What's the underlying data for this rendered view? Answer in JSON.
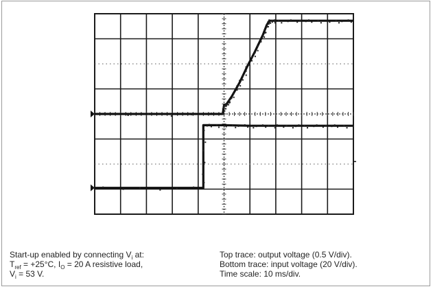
{
  "chart_data": {
    "type": "line",
    "title": "",
    "xlabel": "",
    "ylabel": "",
    "grid": true,
    "divisions": {
      "x": 10,
      "y": 8
    },
    "xlim": [
      -5,
      5
    ],
    "ylim": [
      -4,
      4
    ],
    "units": {
      "x": "div",
      "y": "div"
    },
    "channel_marker_level": 0,
    "series": [
      {
        "name": "",
        "role": "top trace",
        "x": [
          -5.0,
          -0.05,
          0.0,
          0.1,
          0.3,
          0.6,
          0.9,
          1.2,
          1.5,
          1.65,
          1.75,
          2.0,
          3.0,
          4.0,
          5.0
        ],
        "y": [
          0.0,
          0.0,
          0.35,
          0.4,
          0.7,
          1.25,
          1.9,
          2.5,
          3.15,
          3.55,
          3.72,
          3.72,
          3.72,
          3.72,
          3.72
        ]
      },
      {
        "name": "",
        "role": "bottom trace",
        "x": [
          -5.0,
          -0.8,
          -0.8,
          0.0,
          1.0,
          2.0,
          3.0,
          4.0,
          5.0
        ],
        "y": [
          -2.95,
          -2.95,
          -0.45,
          -0.45,
          -0.47,
          -0.47,
          -0.47,
          -0.47,
          -0.47
        ]
      }
    ]
  },
  "caption": {
    "left": {
      "line1_text": "Start-up enabled by connecting V",
      "line1_sub": "i",
      "line1_end": " at:",
      "line2_a": "T",
      "line2_sub_a": "ref",
      "line2_b": " = +25°C, I",
      "line2_sub_b": "O",
      "line2_c": " = 20 A resistive load,",
      "line3_a": "V",
      "line3_sub": "i",
      "line3_b": " = 53 V."
    },
    "right": {
      "line1": "Top trace: output voltage (0.5 V/div).",
      "line2": "Bottom trace: input voltage (20 V/div).",
      "line3": "Time scale: 10 ms/div."
    }
  }
}
